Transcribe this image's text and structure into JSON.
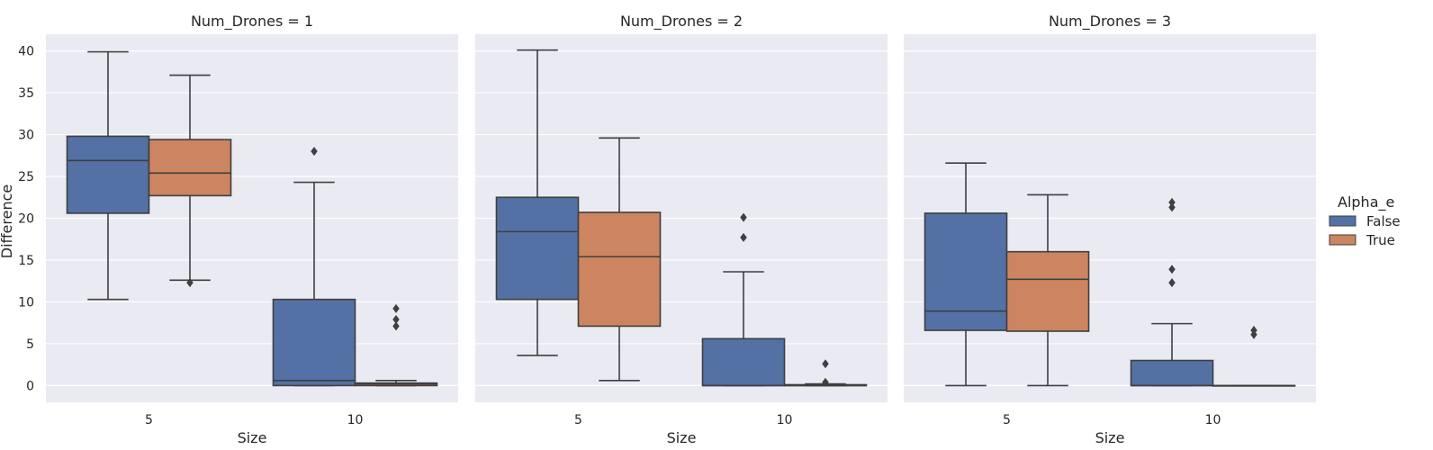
{
  "chart_data": {
    "type": "box",
    "x_label": "Size",
    "y_label": "Difference",
    "categories": [
      "5",
      "10"
    ],
    "y_ticks": [
      0,
      5,
      10,
      15,
      20,
      25,
      30,
      35,
      40
    ],
    "ylim": [
      -2,
      42
    ],
    "grid": true,
    "legend": {
      "title": "Alpha_e",
      "position": "right",
      "entries": [
        {
          "label": "False",
          "color": "#5471a5"
        },
        {
          "label": "True",
          "color": "#cc8560"
        }
      ]
    },
    "facets": [
      {
        "title": "Num_Drones = 1",
        "boxes": [
          {
            "category": "5",
            "hue": "False",
            "whisker_low": 10.3,
            "q1": 20.6,
            "median": 26.9,
            "q3": 29.8,
            "whisker_high": 39.9,
            "outliers": []
          },
          {
            "category": "5",
            "hue": "True",
            "whisker_low": 12.6,
            "q1": 22.7,
            "median": 25.4,
            "q3": 29.4,
            "whisker_high": 37.1,
            "outliers": [
              12.3
            ]
          },
          {
            "category": "10",
            "hue": "False",
            "whisker_low": 0.0,
            "q1": 0.0,
            "median": 0.6,
            "q3": 10.3,
            "whisker_high": 24.3,
            "outliers": [
              28.0
            ]
          },
          {
            "category": "10",
            "hue": "True",
            "whisker_low": 0.0,
            "q1": 0.0,
            "median": 0.2,
            "q3": 0.3,
            "whisker_high": 0.6,
            "outliers": [
              7.1,
              7.9,
              9.2
            ]
          }
        ]
      },
      {
        "title": "Num_Drones = 2",
        "boxes": [
          {
            "category": "5",
            "hue": "False",
            "whisker_low": 3.6,
            "q1": 10.3,
            "median": 18.4,
            "q3": 22.5,
            "whisker_high": 40.1,
            "outliers": []
          },
          {
            "category": "5",
            "hue": "True",
            "whisker_low": 0.6,
            "q1": 7.1,
            "median": 15.4,
            "q3": 20.7,
            "whisker_high": 29.6,
            "outliers": []
          },
          {
            "category": "10",
            "hue": "False",
            "whisker_low": 0.0,
            "q1": 0.0,
            "median": 0.0,
            "q3": 5.6,
            "whisker_high": 13.6,
            "outliers": [
              17.7,
              20.1
            ]
          },
          {
            "category": "10",
            "hue": "True",
            "whisker_low": 0.0,
            "q1": 0.0,
            "median": 0.0,
            "q3": 0.1,
            "whisker_high": 0.2,
            "outliers": [
              0.4,
              2.6
            ]
          }
        ]
      },
      {
        "title": "Num_Drones = 3",
        "boxes": [
          {
            "category": "5",
            "hue": "False",
            "whisker_low": 0.0,
            "q1": 6.6,
            "median": 8.9,
            "q3": 20.6,
            "whisker_high": 26.6,
            "outliers": []
          },
          {
            "category": "5",
            "hue": "True",
            "whisker_low": 0.0,
            "q1": 6.5,
            "median": 12.7,
            "q3": 16.0,
            "whisker_high": 22.8,
            "outliers": []
          },
          {
            "category": "10",
            "hue": "False",
            "whisker_low": 0.0,
            "q1": 0.0,
            "median": 0.0,
            "q3": 3.0,
            "whisker_high": 7.4,
            "outliers": [
              12.3,
              13.9,
              21.3,
              21.9
            ]
          },
          {
            "category": "10",
            "hue": "True",
            "whisker_low": 0.0,
            "q1": 0.0,
            "median": 0.0,
            "q3": 0.0,
            "whisker_high": 0.0,
            "outliers": [
              6.1,
              6.6
            ]
          }
        ]
      }
    ]
  }
}
